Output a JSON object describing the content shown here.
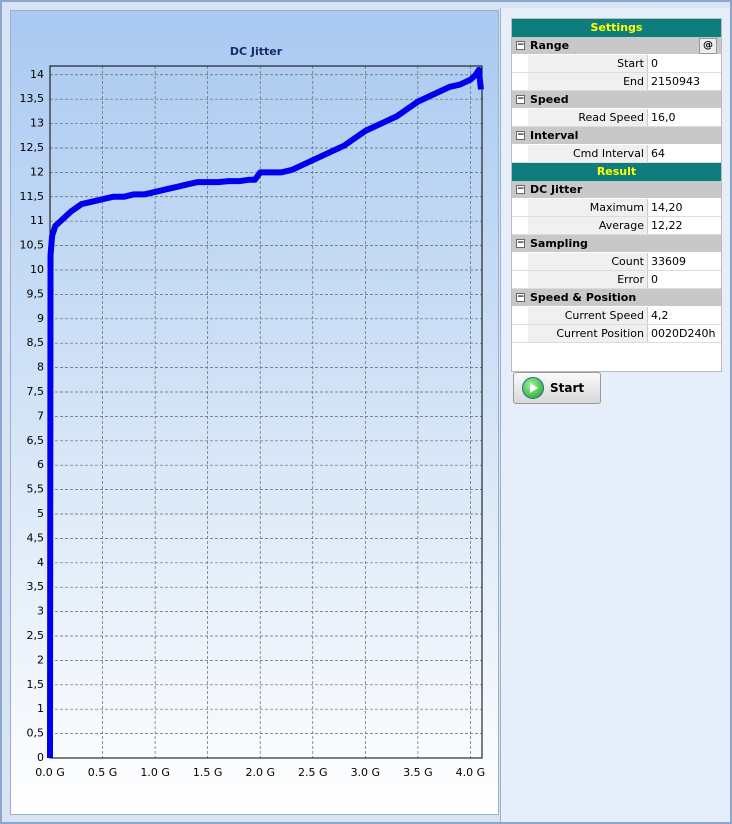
{
  "chart_data": {
    "type": "line",
    "title": "DC Jitter",
    "color": "#0000ee",
    "grid": true,
    "x": [
      0,
      0.005,
      0.02,
      0.05,
      0.1,
      0.15,
      0.2,
      0.3,
      0.4,
      0.5,
      0.6,
      0.7,
      0.8,
      0.9,
      1.0,
      1.1,
      1.2,
      1.3,
      1.4,
      1.5,
      1.6,
      1.7,
      1.8,
      1.9,
      1.95,
      2.0,
      2.1,
      2.2,
      2.3,
      2.4,
      2.5,
      2.6,
      2.7,
      2.8,
      2.9,
      3.0,
      3.1,
      3.2,
      3.3,
      3.4,
      3.5,
      3.6,
      3.7,
      3.8,
      3.9,
      4.0,
      4.05,
      4.08,
      4.1
    ],
    "values": [
      0,
      10.3,
      10.7,
      10.9,
      11.0,
      11.1,
      11.2,
      11.35,
      11.4,
      11.45,
      11.5,
      11.5,
      11.55,
      11.55,
      11.6,
      11.65,
      11.7,
      11.75,
      11.8,
      11.8,
      11.8,
      11.82,
      11.82,
      11.85,
      11.85,
      12.0,
      12.0,
      12.0,
      12.05,
      12.15,
      12.25,
      12.35,
      12.45,
      12.55,
      12.7,
      12.85,
      12.95,
      13.05,
      13.15,
      13.3,
      13.45,
      13.55,
      13.65,
      13.75,
      13.8,
      13.9,
      14.0,
      14.1,
      13.7
    ],
    "xlim": [
      0,
      4.11
    ],
    "ylim": [
      0,
      14.18
    ],
    "xticks": [
      {
        "value": 0,
        "label": "0.0 G"
      },
      {
        "value": 0.5,
        "label": "0.5 G"
      },
      {
        "value": 1.0,
        "label": "1.0 G"
      },
      {
        "value": 1.5,
        "label": "1.5 G"
      },
      {
        "value": 2.0,
        "label": "2.0 G"
      },
      {
        "value": 2.5,
        "label": "2.5 G"
      },
      {
        "value": 3.0,
        "label": "3.0 G"
      },
      {
        "value": 3.5,
        "label": "3.5 G"
      },
      {
        "value": 4.0,
        "label": "4.0 G"
      }
    ],
    "yticks": [
      0,
      {
        "value": 0.5,
        "label": "0,5"
      },
      1,
      {
        "value": 1.5,
        "label": "1,5"
      },
      2,
      {
        "value": 2.5,
        "label": "2,5"
      },
      3,
      {
        "value": 3.5,
        "label": "3,5"
      },
      4,
      {
        "value": 4.5,
        "label": "4,5"
      },
      5,
      {
        "value": 5.5,
        "label": "5,5"
      },
      6,
      {
        "value": 6.5,
        "label": "6,5"
      },
      7,
      {
        "value": 7.5,
        "label": "7,5"
      },
      8,
      {
        "value": 8.5,
        "label": "8,5"
      },
      9,
      {
        "value": 9.5,
        "label": "9,5"
      },
      10,
      {
        "value": 10.5,
        "label": "10,5"
      },
      11,
      {
        "value": 11.5,
        "label": "11,5"
      },
      12,
      {
        "value": 12.5,
        "label": "12,5"
      },
      13,
      {
        "value": 13.5,
        "label": "13,5"
      },
      14
    ]
  },
  "panel": {
    "range_button": "@",
    "start_button": "Start",
    "sections": [
      {
        "title": "Settings",
        "groups": [
          {
            "name": "Range",
            "rows": [
              [
                "Start",
                "0"
              ],
              [
                "End",
                "2150943"
              ]
            ]
          },
          {
            "name": "Speed",
            "rows": [
              [
                "Read Speed",
                "16,0"
              ]
            ]
          },
          {
            "name": "Interval",
            "rows": [
              [
                "Cmd Interval",
                "64"
              ]
            ]
          }
        ]
      },
      {
        "title": "Result",
        "groups": [
          {
            "name": "DC Jitter",
            "rows": [
              [
                "Maximum",
                "14,20"
              ],
              [
                "Average",
                "12,22"
              ]
            ]
          },
          {
            "name": "Sampling",
            "rows": [
              [
                "Count",
                "33609"
              ],
              [
                "Error",
                "0"
              ]
            ]
          },
          {
            "name": "Speed & Position",
            "rows": [
              [
                "Current Speed",
                "4,2"
              ],
              [
                "Current Position",
                "0020D240h"
              ]
            ]
          }
        ]
      }
    ]
  }
}
